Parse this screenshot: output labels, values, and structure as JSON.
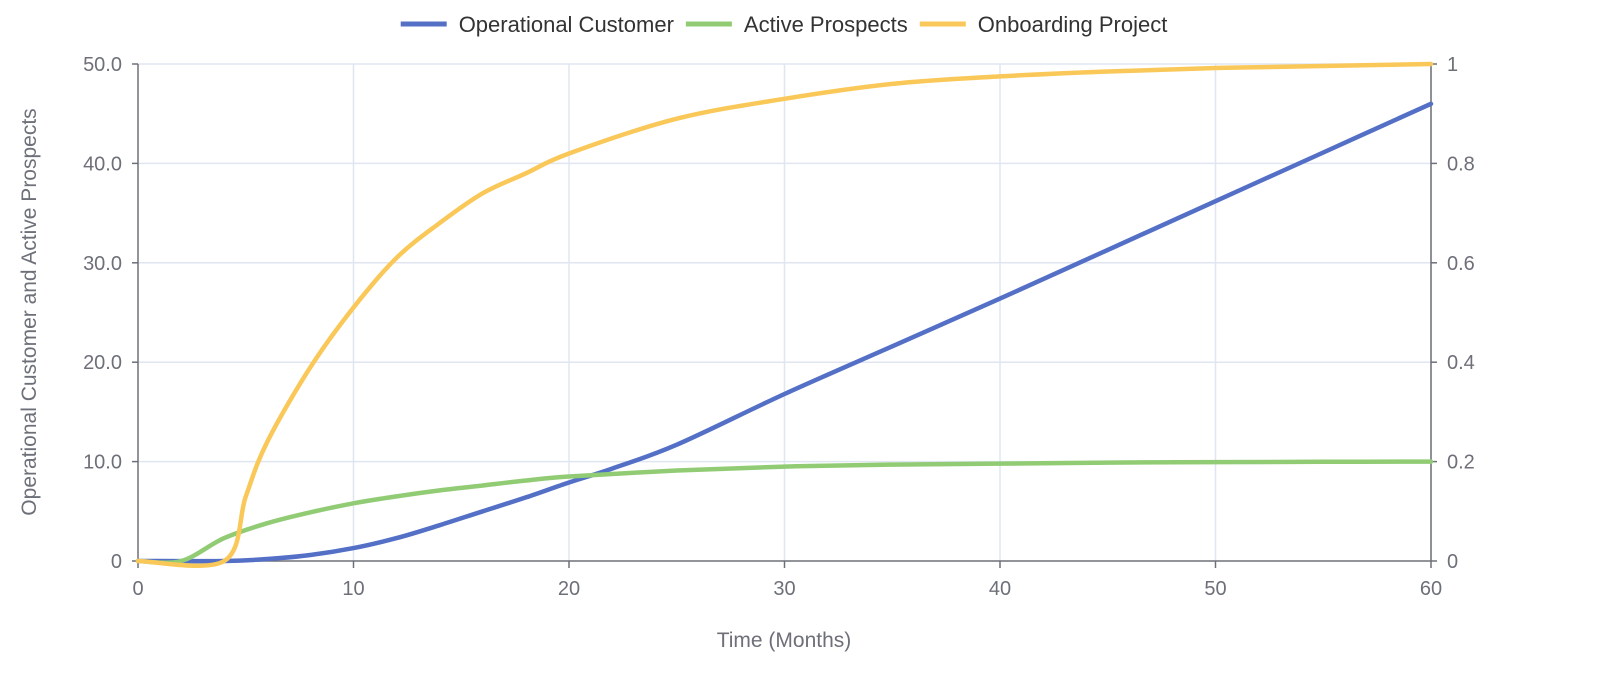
{
  "chart_data": {
    "type": "line",
    "xlabel": "Time (Months)",
    "ylabel": "Operational Customer and Active Prospects",
    "xlim": [
      0,
      60
    ],
    "ylim": [
      0,
      50
    ],
    "y2lim": [
      0,
      1
    ],
    "x_ticks": [
      "0",
      "10",
      "20",
      "30",
      "40",
      "50",
      "60"
    ],
    "y_ticks": [
      "0",
      "10.0",
      "20.0",
      "30.0",
      "40.0",
      "50.0"
    ],
    "y2_ticks": [
      "0",
      "0.2",
      "0.4",
      "0.6",
      "0.8",
      "1"
    ],
    "grid": true,
    "legend_position": "top-center",
    "series": [
      {
        "name": "Operational Customer",
        "axis": "left",
        "color": "#5470c6",
        "points": [
          [
            0,
            0
          ],
          [
            4,
            0
          ],
          [
            6,
            0.2
          ],
          [
            8,
            0.6
          ],
          [
            10,
            1.3
          ],
          [
            12,
            2.3
          ],
          [
            14,
            3.6
          ],
          [
            16,
            5.0
          ],
          [
            18,
            6.4
          ],
          [
            20,
            7.9
          ],
          [
            22,
            9.3
          ],
          [
            25,
            11.7
          ],
          [
            30,
            16.8
          ],
          [
            35,
            21.6
          ],
          [
            40,
            26.4
          ],
          [
            45,
            31.3
          ],
          [
            50,
            36.2
          ],
          [
            55,
            41.1
          ],
          [
            60,
            46.0
          ]
        ]
      },
      {
        "name": "Active Prospects",
        "axis": "left",
        "color": "#91cc75",
        "points": [
          [
            0,
            0
          ],
          [
            2,
            0
          ],
          [
            4,
            2.3
          ],
          [
            6,
            3.8
          ],
          [
            8,
            4.9
          ],
          [
            10,
            5.8
          ],
          [
            12,
            6.5
          ],
          [
            14,
            7.1
          ],
          [
            16,
            7.6
          ],
          [
            18,
            8.1
          ],
          [
            20,
            8.5
          ],
          [
            25,
            9.1
          ],
          [
            30,
            9.5
          ],
          [
            35,
            9.7
          ],
          [
            40,
            9.8
          ],
          [
            45,
            9.9
          ],
          [
            50,
            9.95
          ],
          [
            55,
            9.98
          ],
          [
            60,
            10.0
          ]
        ]
      },
      {
        "name": "Onboarding Project",
        "axis": "right",
        "color": "#fac858",
        "points": [
          [
            0,
            0
          ],
          [
            4,
            0
          ],
          [
            5,
            0.13
          ],
          [
            6,
            0.24
          ],
          [
            8,
            0.39
          ],
          [
            10,
            0.51
          ],
          [
            12,
            0.61
          ],
          [
            14,
            0.68
          ],
          [
            16,
            0.74
          ],
          [
            18,
            0.78
          ],
          [
            20,
            0.82
          ],
          [
            25,
            0.89
          ],
          [
            30,
            0.93
          ],
          [
            35,
            0.96
          ],
          [
            40,
            0.975
          ],
          [
            45,
            0.985
          ],
          [
            50,
            0.992
          ],
          [
            55,
            0.996
          ],
          [
            60,
            1.0
          ]
        ]
      }
    ]
  }
}
